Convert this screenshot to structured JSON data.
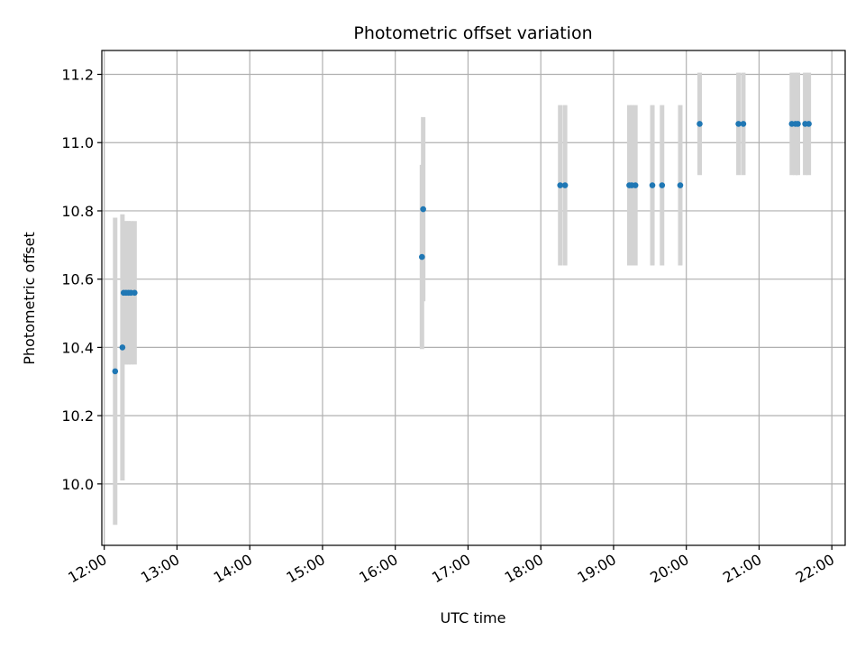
{
  "chart_data": {
    "type": "scatter",
    "title": "Photometric offset variation",
    "xlabel": "UTC time",
    "ylabel": "Photometric offset",
    "x_tick_labels": [
      "12:00",
      "13:00",
      "14:00",
      "15:00",
      "16:00",
      "17:00",
      "18:00",
      "19:00",
      "20:00",
      "21:00",
      "22:00"
    ],
    "y_tick_labels": [
      "10.0",
      "10.2",
      "10.4",
      "10.6",
      "10.8",
      "11.0",
      "11.2"
    ],
    "xlim": [
      "11:58",
      "22:11"
    ],
    "ylim": [
      9.82,
      11.27
    ],
    "grid": true,
    "point_color": "#1f77b4",
    "errorbar_color": "#d3d3d3",
    "points": [
      {
        "x": "12:09",
        "y": 10.33,
        "err": 0.45
      },
      {
        "x": "12:15",
        "y": 10.4,
        "err": 0.39
      },
      {
        "x": "12:16",
        "y": 10.56,
        "err": 0.21
      },
      {
        "x": "12:18",
        "y": 10.56,
        "err": 0.21
      },
      {
        "x": "12:20",
        "y": 10.56,
        "err": 0.21
      },
      {
        "x": "12:22",
        "y": 10.56,
        "err": 0.21
      },
      {
        "x": "12:25",
        "y": 10.56,
        "err": 0.21
      },
      {
        "x": "16:22",
        "y": 10.665,
        "err": 0.27
      },
      {
        "x": "16:23",
        "y": 10.805,
        "err": 0.27
      },
      {
        "x": "18:16",
        "y": 10.875,
        "err": 0.235
      },
      {
        "x": "18:20",
        "y": 10.875,
        "err": 0.235
      },
      {
        "x": "19:13",
        "y": 10.875,
        "err": 0.235
      },
      {
        "x": "19:15",
        "y": 10.875,
        "err": 0.235
      },
      {
        "x": "19:18",
        "y": 10.875,
        "err": 0.235
      },
      {
        "x": "19:32",
        "y": 10.875,
        "err": 0.235
      },
      {
        "x": "19:40",
        "y": 10.875,
        "err": 0.235
      },
      {
        "x": "19:55",
        "y": 10.875,
        "err": 0.235
      },
      {
        "x": "20:11",
        "y": 11.055,
        "err": 0.15
      },
      {
        "x": "20:43",
        "y": 11.055,
        "err": 0.15
      },
      {
        "x": "20:47",
        "y": 11.055,
        "err": 0.15
      },
      {
        "x": "21:27",
        "y": 11.055,
        "err": 0.15
      },
      {
        "x": "21:30",
        "y": 11.055,
        "err": 0.15
      },
      {
        "x": "21:32",
        "y": 11.055,
        "err": 0.15
      },
      {
        "x": "21:38",
        "y": 11.055,
        "err": 0.15
      },
      {
        "x": "21:41",
        "y": 11.055,
        "err": 0.15
      }
    ]
  }
}
